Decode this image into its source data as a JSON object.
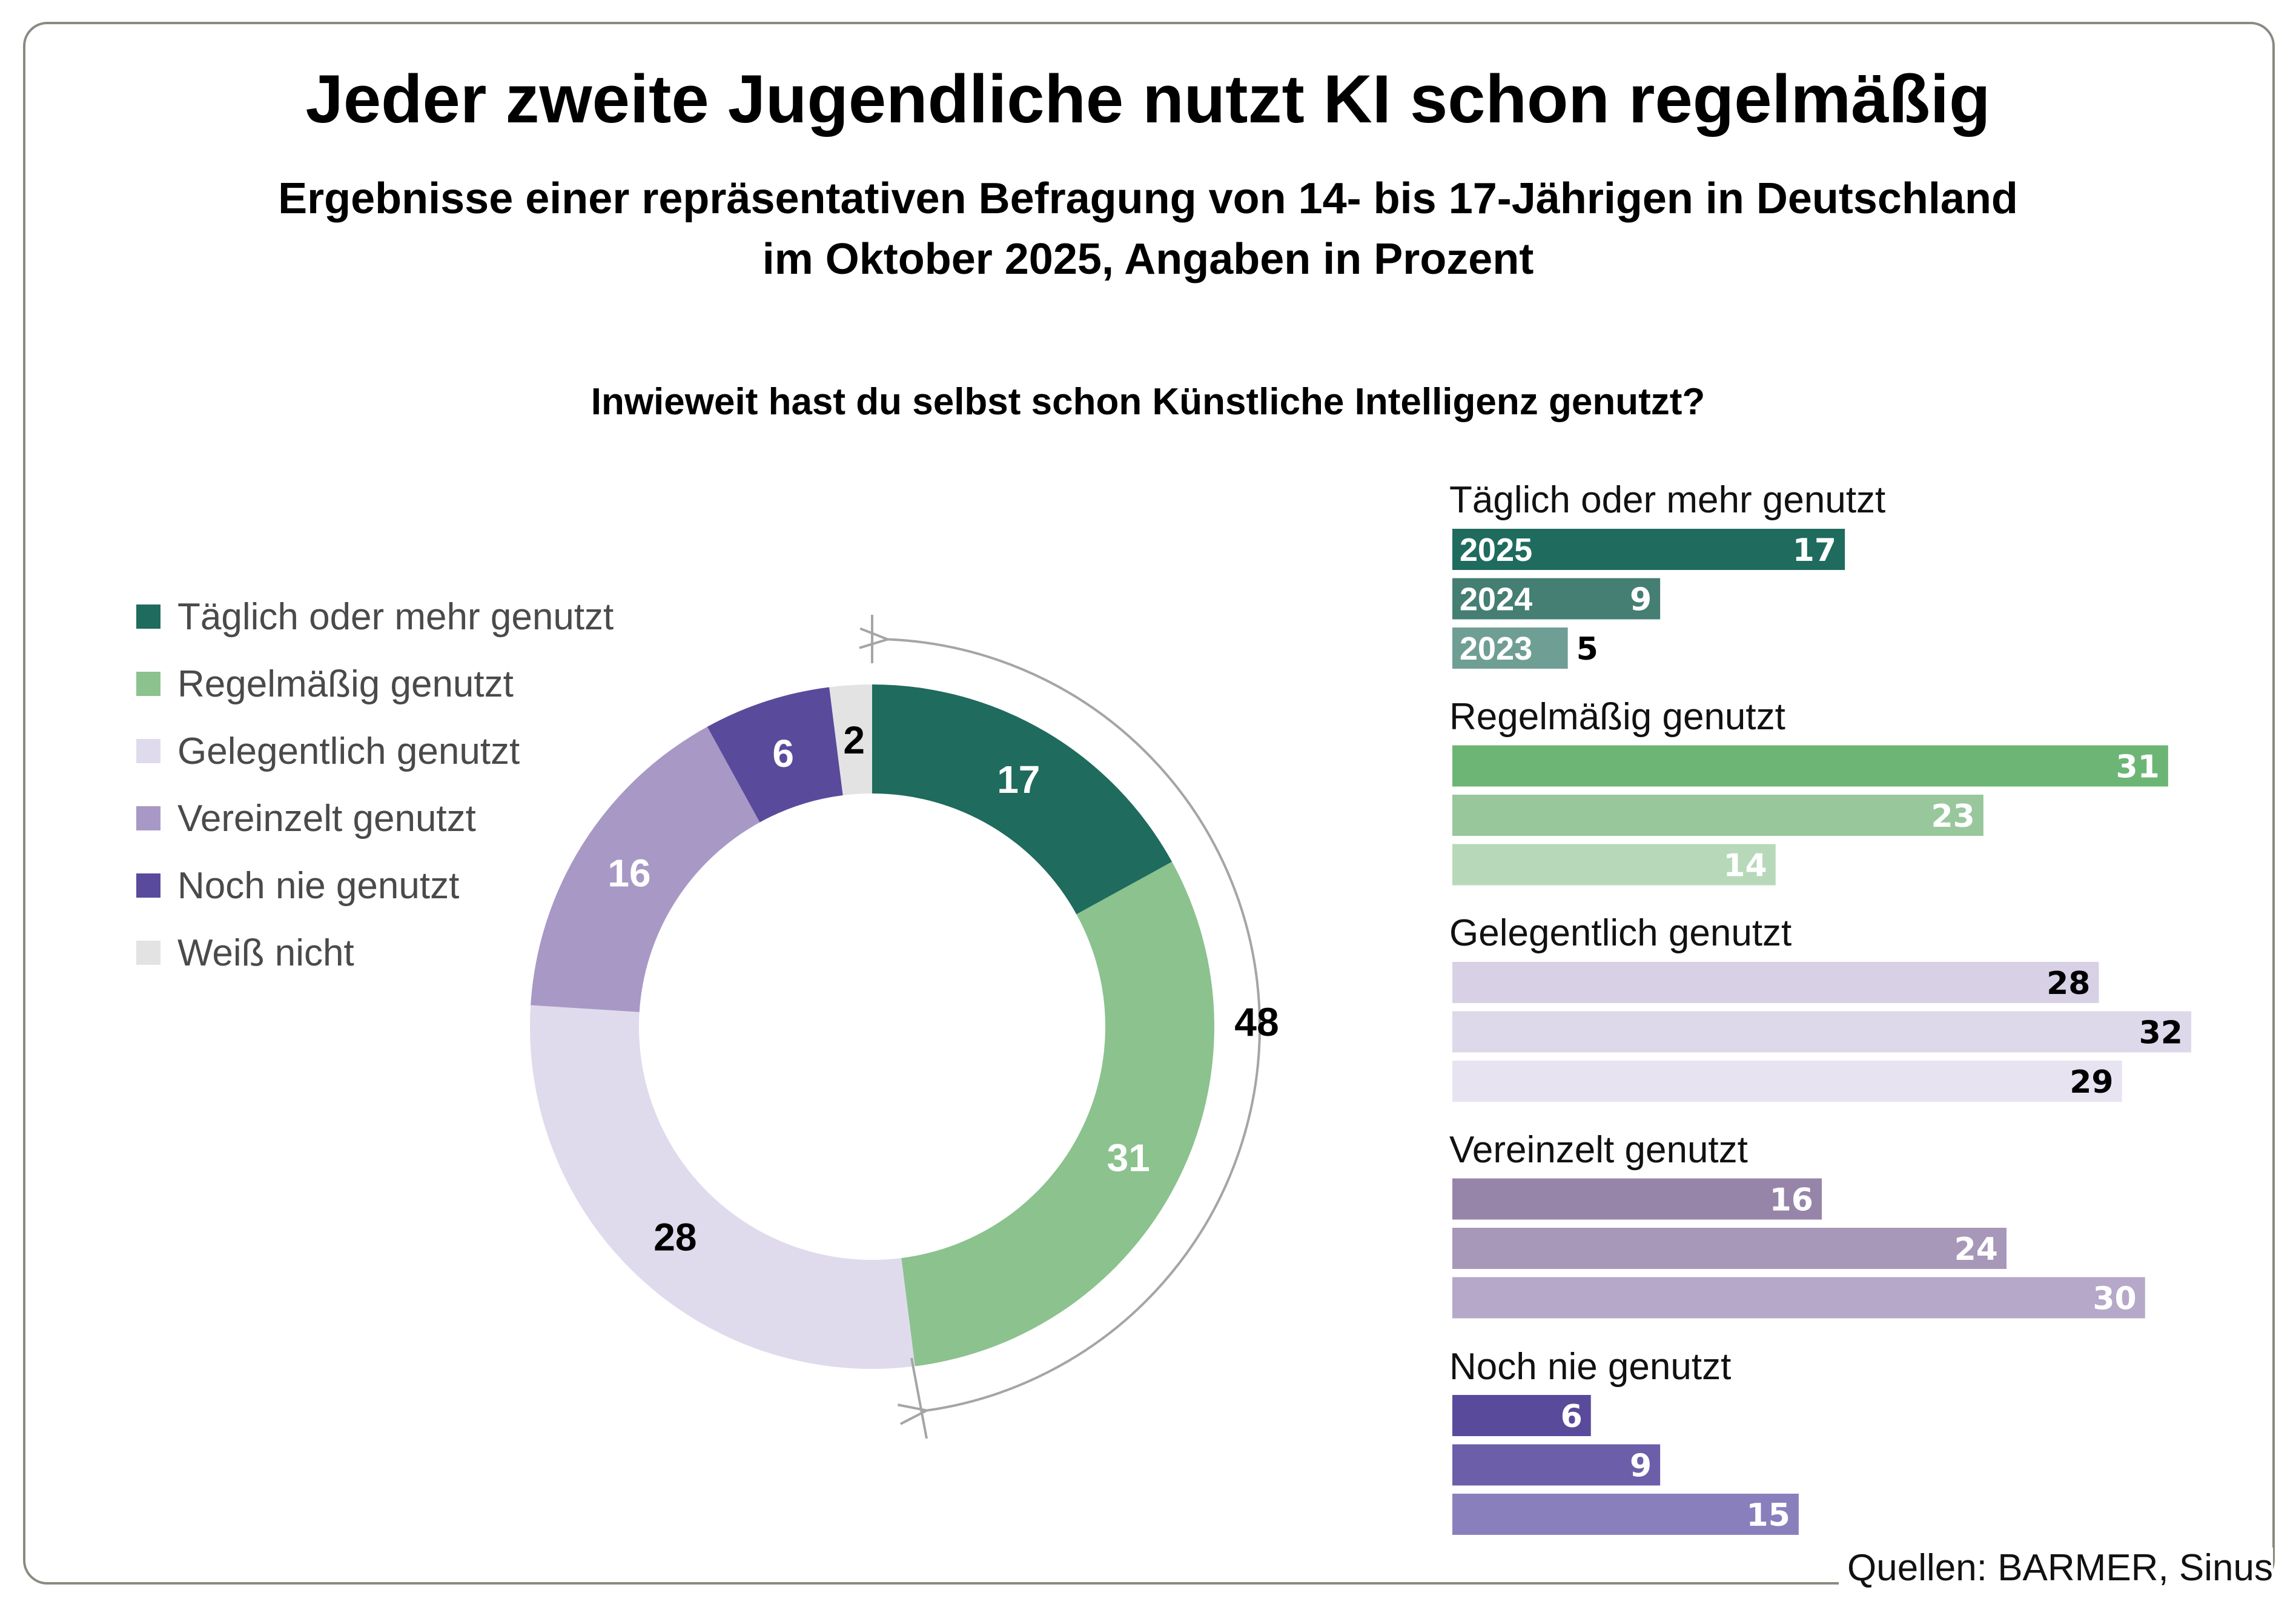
{
  "title": "Jeder zweite Jugendliche nutzt KI schon regelmäßig",
  "subtitle_line1": "Ergebnisse einer repräsentativen Befragung von 14- bis 17-Jährigen in Deutschland",
  "subtitle_line2": "im Oktober 2025, Angaben in Prozent",
  "question": "Inwieweit hast du selbst schon Künstliche Intelligenz genutzt?",
  "source": "Quellen: BARMER, Sinus",
  "chart_data": [
    {
      "type": "pie",
      "variant": "donut",
      "categories": [
        "Täglich oder mehr genutzt",
        "Regelmäßig genutzt",
        "Gelegentlich genutzt",
        "Vereinzelt genutzt",
        "Noch nie genutzt",
        "Weiß nicht"
      ],
      "values": [
        17,
        31,
        28,
        16,
        6,
        2
      ],
      "colors": [
        "#1f6b5e",
        "#8bc28e",
        "#dfdbed",
        "#a898c6",
        "#5a4a9c",
        "#e3e3e3"
      ],
      "label_colors": [
        "#ffffff",
        "#ffffff",
        "#000000",
        "#ffffff",
        "#ffffff",
        "#000000"
      ],
      "bracket_total": "48",
      "legend_position": "left"
    },
    {
      "type": "bar",
      "orientation": "horizontal",
      "year_labels": [
        "2025",
        "2024",
        "2023"
      ],
      "groups": [
        {
          "name": "Täglich oder mehr genutzt",
          "values": [
            17,
            9,
            5
          ],
          "colors": [
            "#1f6b5e",
            "#457e73",
            "#6f9e94"
          ],
          "label_colors": [
            "#ffffff",
            "#ffffff",
            "#000000"
          ]
        },
        {
          "name": "Regelmäßig genutzt",
          "values": [
            31,
            23,
            14
          ],
          "colors": [
            "#6db574",
            "#98c79c",
            "#b7d9b9"
          ],
          "label_colors": [
            "#ffffff",
            "#ffffff",
            "#ffffff"
          ]
        },
        {
          "name": "Gelegentlich genutzt",
          "values": [
            28,
            32,
            29
          ],
          "colors": [
            "#d8d1e6",
            "#ddd8ea",
            "#e7e3f1"
          ],
          "label_colors": [
            "#000000",
            "#000000",
            "#000000"
          ]
        },
        {
          "name": "Vereinzelt genutzt",
          "values": [
            16,
            24,
            30
          ],
          "colors": [
            "#9685a9",
            "#a797b8",
            "#b5a8c8"
          ],
          "label_colors": [
            "#ffffff",
            "#ffffff",
            "#ffffff"
          ]
        },
        {
          "name": "Noch nie genutzt",
          "values": [
            6,
            9,
            15
          ],
          "colors": [
            "#5a4a9c",
            "#6d5eaa",
            "#8a7fbd"
          ],
          "label_colors": [
            "#ffffff",
            "#ffffff",
            "#ffffff"
          ]
        }
      ],
      "xlim": [
        0,
        32
      ]
    }
  ]
}
